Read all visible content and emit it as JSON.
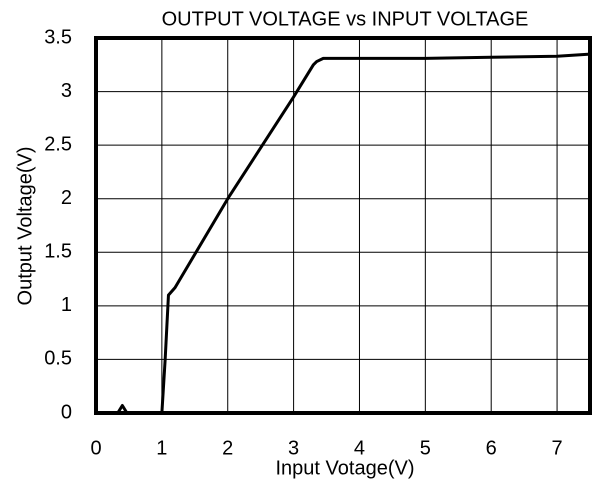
{
  "chart_data": {
    "type": "line",
    "title": "OUTPUT VOLTAGE vs INPUT VOLTAGE",
    "x_label": "Input Votage(V)",
    "y_label": "Output Voltage(V)",
    "x": [
      0,
      0.33,
      0.4,
      0.47,
      1.0,
      1.05,
      1.1,
      1.2,
      2,
      3,
      3.3,
      3.35,
      3.45,
      5,
      6,
      7,
      7.5
    ],
    "series": [
      {
        "name": "Output Voltage",
        "color": "#000000",
        "values": [
          0,
          0,
          0.07,
          0,
          0,
          0.5,
          1.1,
          1.17,
          2,
          2.95,
          3.25,
          3.28,
          3.31,
          3.31,
          3.32,
          3.33,
          3.35
        ]
      }
    ],
    "xlim": [
      0,
      7.5
    ],
    "ylim": [
      0,
      3.5
    ],
    "xticks": [
      0,
      1,
      2,
      3,
      4,
      5,
      6,
      7
    ],
    "yticks": [
      0,
      0.5,
      1,
      1.5,
      2,
      2.5,
      3,
      3.5
    ],
    "grid": true
  }
}
